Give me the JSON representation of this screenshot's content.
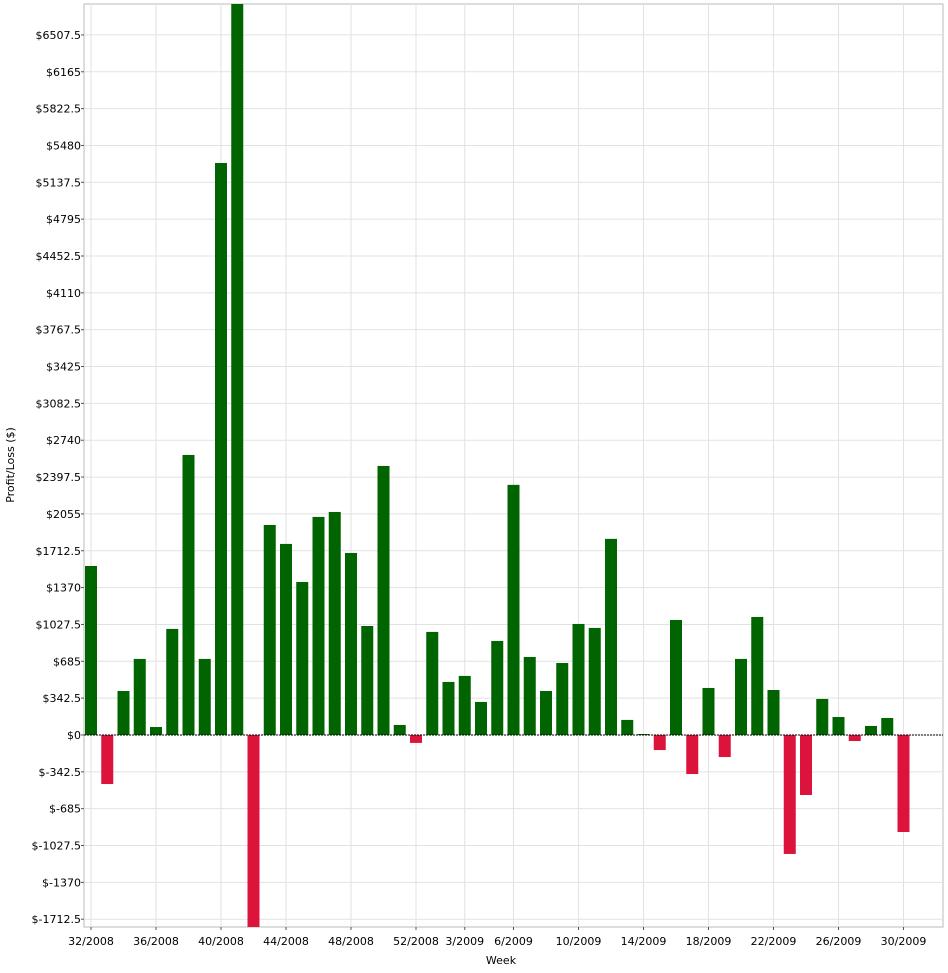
{
  "chart_data": {
    "type": "bar",
    "x_label": "Week",
    "y_label": "Profit/Loss ($)",
    "categories": [
      "32/2008",
      null,
      null,
      null,
      "36/2008",
      null,
      null,
      null,
      "40/2008",
      null,
      null,
      null,
      "44/2008",
      null,
      null,
      null,
      "48/2008",
      null,
      null,
      null,
      "52/2008",
      null,
      null,
      "3/2009",
      null,
      null,
      "6/2009",
      null,
      null,
      null,
      "10/2009",
      null,
      null,
      null,
      "14/2009",
      null,
      null,
      null,
      "18/2009",
      null,
      null,
      null,
      "22/2009",
      null,
      null,
      null,
      "26/2009",
      null,
      null,
      null,
      "30/2009"
    ],
    "values": [
      1571,
      -456,
      409,
      707,
      74,
      986,
      2603,
      707,
      5317,
      6850,
      -1800,
      1952,
      1776,
      1422,
      2027,
      2073,
      1692,
      1013,
      2501,
      93,
      -74,
      958,
      493,
      549,
      307,
      874,
      2325,
      725,
      409,
      669,
      1032,
      995,
      1823,
      140,
      9,
      -140,
      1069,
      -363,
      437,
      -205,
      707,
      1097,
      418,
      -1106,
      -558,
      335,
      167,
      -56,
      84,
      158,
      -902
    ],
    "positive_color": "#006400",
    "negative_color": "#dc143c",
    "ylim": [
      -1785,
      6795
    ],
    "yticks": [
      {
        "value": -1712.5,
        "label": "$-1712.5"
      },
      {
        "value": -1370,
        "label": "$-1370"
      },
      {
        "value": -1027.5,
        "label": "$-1027.5"
      },
      {
        "value": -685,
        "label": "$-685"
      },
      {
        "value": -342.5,
        "label": "$-342.5"
      },
      {
        "value": 0,
        "label": "$0"
      },
      {
        "value": 342.5,
        "label": "$342.5"
      },
      {
        "value": 685,
        "label": "$685"
      },
      {
        "value": 1027.5,
        "label": "$1027.5"
      },
      {
        "value": 1370,
        "label": "$1370"
      },
      {
        "value": 1712.5,
        "label": "$1712.5"
      },
      {
        "value": 2055,
        "label": "$2055"
      },
      {
        "value": 2397.5,
        "label": "$2397.5"
      },
      {
        "value": 2740,
        "label": "$2740"
      },
      {
        "value": 3082.5,
        "label": "$3082.5"
      },
      {
        "value": 3425,
        "label": "$3425"
      },
      {
        "value": 3767.5,
        "label": "$3767.5"
      },
      {
        "value": 4110,
        "label": "$4110"
      },
      {
        "value": 4452.5,
        "label": "$4452.5"
      },
      {
        "value": 4795,
        "label": "$4795"
      },
      {
        "value": 5137.5,
        "label": "$5137.5"
      },
      {
        "value": 5480,
        "label": "$5480"
      },
      {
        "value": 5822.5,
        "label": "$5822.5"
      },
      {
        "value": 6165,
        "label": "$6165"
      },
      {
        "value": 6507.5,
        "label": "$6507.5"
      }
    ],
    "grid": true
  }
}
